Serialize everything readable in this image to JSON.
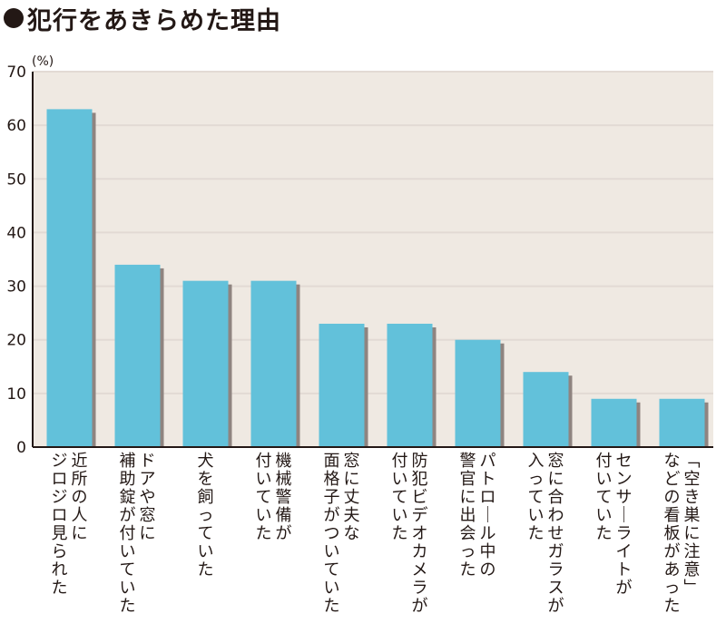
{
  "title": "犯行をあきらめた理由",
  "chart_data": {
    "type": "bar",
    "title": "犯行をあきらめた理由",
    "ylabel": "(%)",
    "ylim": [
      0,
      70
    ],
    "yticks": [
      0,
      10,
      20,
      30,
      40,
      50,
      60,
      70
    ],
    "grid": true,
    "colors": {
      "bar": "#62c1da",
      "shadow": "#8f8480",
      "grid": "#e2dad4",
      "plot_bg": "#efe9e2",
      "axis": "#231815"
    },
    "categories": [
      [
        "近所の人に",
        "ジロジロ見られた"
      ],
      [
        "ドアや窓に",
        "補助錠が付いていた"
      ],
      [
        "犬を飼っていた"
      ],
      [
        "機械警備が",
        "付いていた"
      ],
      [
        "窓に丈夫な",
        "面格子がついていた"
      ],
      [
        "防犯ビデオカメラが",
        "付いていた"
      ],
      [
        "パトロール中の",
        "警官に出会った"
      ],
      [
        "窓に合わせガラスが",
        "入っていた"
      ],
      [
        "センサーライトが",
        "付いていた"
      ],
      [
        "「空き巣に注意」",
        "などの看板があった"
      ]
    ],
    "values": [
      63,
      34,
      31,
      31,
      23,
      23,
      20,
      14,
      9,
      9
    ]
  }
}
